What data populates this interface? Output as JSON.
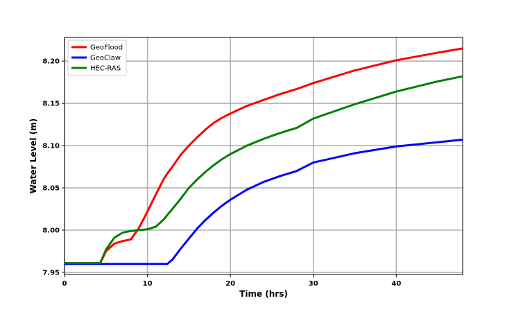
{
  "chart_data": {
    "type": "line",
    "xlabel": "Time (hrs)",
    "ylabel": "Water Level (m)",
    "x": [
      0,
      4.3,
      5,
      6,
      7,
      8,
      9,
      10,
      11,
      12,
      12.4,
      13,
      14,
      15,
      16,
      17,
      18,
      19,
      20,
      22,
      24,
      26,
      28,
      30,
      35,
      40,
      45,
      48
    ],
    "series": [
      {
        "name": "GeoFlood",
        "color": "#ff0000",
        "values": [
          7.961,
          7.961,
          7.975,
          7.984,
          7.987,
          7.989,
          8.003,
          8.022,
          8.042,
          8.061,
          8.067,
          8.075,
          8.089,
          8.1,
          8.11,
          8.119,
          8.127,
          8.133,
          8.138,
          8.147,
          8.154,
          8.161,
          8.167,
          8.174,
          8.189,
          8.201,
          8.21,
          8.215
        ]
      },
      {
        "name": "GeoClaw",
        "color": "#0000ff",
        "values": [
          7.96,
          7.96,
          7.96,
          7.96,
          7.96,
          7.96,
          7.96,
          7.96,
          7.96,
          7.96,
          7.96,
          7.965,
          7.978,
          7.99,
          8.002,
          8.012,
          8.021,
          8.029,
          8.036,
          8.048,
          8.057,
          8.064,
          8.07,
          8.08,
          8.091,
          8.099,
          8.104,
          8.107
        ]
      },
      {
        "name": "HEC-RAS",
        "color": "#008000",
        "values": [
          7.961,
          7.961,
          7.977,
          7.991,
          7.997,
          7.999,
          8.0,
          8.001,
          8.004,
          8.013,
          8.018,
          8.025,
          8.037,
          8.05,
          8.06,
          8.069,
          8.077,
          8.084,
          8.09,
          8.1,
          8.108,
          8.115,
          8.121,
          8.132,
          8.149,
          8.164,
          8.176,
          8.182
        ]
      }
    ],
    "xlim": [
      0,
      48
    ],
    "xticks": [
      0,
      10,
      20,
      30,
      40
    ],
    "ylim": [
      7.9475,
      8.228
    ],
    "yticks": [
      7.95,
      {
        "value": 8.0,
        "label": "8.00"
      },
      8.05,
      {
        "value": 8.1,
        "label": "8.10"
      },
      8.15,
      {
        "value": 8.2,
        "label": "8.20"
      }
    ],
    "grid": true,
    "legend": "upper left"
  }
}
